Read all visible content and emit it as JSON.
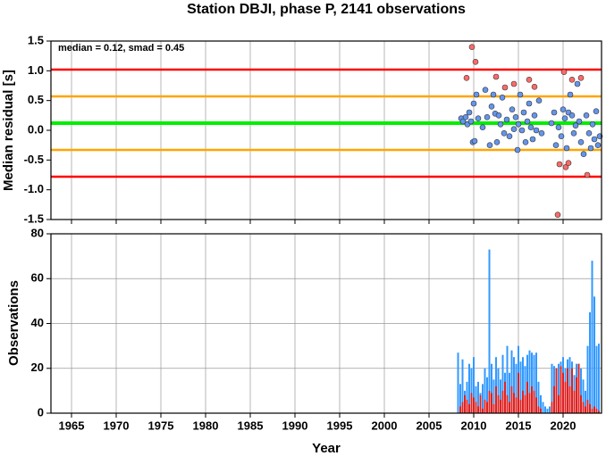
{
  "chart_data": [
    {
      "type": "scatter",
      "title": "Station DBJI, phase P, 2141 observations",
      "ylabel": "Median residual [s]",
      "annotation": "median = 0.12, smad = 0.45",
      "xlim": [
        1962.7,
        2024.3
      ],
      "xticks": [
        1965,
        1970,
        1975,
        1980,
        1985,
        1990,
        1995,
        2000,
        2005,
        2010,
        2015,
        2020
      ],
      "ylim": [
        -1.5,
        1.5
      ],
      "yticks": [
        -1.5,
        {
          "value": -1,
          "label": "-1.0"
        },
        -0.5,
        {
          "value": 0,
          "label": "0.0"
        },
        0.5,
        {
          "value": 1,
          "label": "1.0"
        },
        1.5
      ],
      "grid": true,
      "hlines": [
        {
          "value": 1.02,
          "color": "#ff0000"
        },
        {
          "value": 0.57,
          "color": "#ffa500"
        },
        {
          "value": 0.12,
          "color": "#00ee00"
        },
        {
          "value": -0.33,
          "color": "#ffa500"
        },
        {
          "value": -0.78,
          "color": "#ff0000"
        }
      ],
      "series": [
        {
          "color": "#6495ed",
          "x": [
            2008.6,
            2008.8,
            2009.1,
            2009.3,
            2009.5,
            2009.7,
            2009.9,
            2010.0,
            2010.1,
            2010.3,
            2010.5,
            2011.0,
            2011.3,
            2011.5,
            2011.8,
            2012.0,
            2012.2,
            2012.4,
            2012.6,
            2012.8,
            2013.0,
            2013.2,
            2013.4,
            2013.7,
            2014.0,
            2014.3,
            2014.5,
            2014.7,
            2014.9,
            2015.0,
            2015.2,
            2015.4,
            2015.6,
            2015.8,
            2016.0,
            2016.2,
            2016.4,
            2016.6,
            2016.8,
            2017.0,
            2017.3,
            2017.6,
            2018.7,
            2019.0,
            2019.2,
            2019.5,
            2019.8,
            2020.0,
            2020.2,
            2020.4,
            2020.6,
            2020.8,
            2021.0,
            2021.2,
            2021.4,
            2021.6,
            2021.8,
            2022.0,
            2022.3,
            2022.6,
            2022.9,
            2023.1,
            2023.3,
            2023.5,
            2023.7,
            2023.9,
            2024.1
          ],
          "values": [
            0.2,
            0.15,
            0.22,
            0.1,
            0.3,
            0.15,
            -0.2,
            0.45,
            -0.18,
            0.6,
            0.2,
            0.05,
            0.68,
            0.22,
            -0.25,
            0.4,
            0.6,
            0.28,
            -0.2,
            0.25,
            0.1,
            0.55,
            -0.05,
            0.18,
            -0.1,
            0.35,
            0.02,
            0.22,
            -0.33,
            0.1,
            0.6,
            0,
            0.3,
            -0.2,
            0.15,
            0.45,
            0.05,
            -0.15,
            0.25,
            0,
            0.5,
            -0.05,
            0.12,
            0.3,
            -0.25,
            0.05,
            -0.1,
            0.35,
            0.2,
            -0.3,
            0.3,
            0.6,
            0.25,
            -0.05,
            0.08,
            0.78,
            0.15,
            -0.2,
            -0.4,
            0.25,
            -0.05,
            -0.3,
            0.1,
            -0.15,
            0.32,
            -0.25,
            -0.1
          ]
        },
        {
          "color": "#ff6a6a",
          "x": [
            2009.2,
            2009.8,
            2010.2,
            2012.5,
            2013.5,
            2014.5,
            2016.2,
            2016.8,
            2019.4,
            2019.6,
            2020.1,
            2020.3,
            2020.6,
            2021.0,
            2022.0,
            2022.7
          ],
          "values": [
            0.88,
            1.4,
            1.15,
            0.9,
            0.72,
            0.78,
            0.85,
            0.73,
            -1.42,
            -0.57,
            0.98,
            -0.62,
            -0.55,
            0.85,
            0.88,
            -0.75
          ]
        }
      ]
    },
    {
      "type": "bar",
      "ylabel": "Observations",
      "xlabel": "Year",
      "xlim": [
        1962.7,
        2024.3
      ],
      "xticks": [
        1965,
        1970,
        1975,
        1980,
        1985,
        1990,
        1995,
        2000,
        2005,
        2010,
        2015,
        2020
      ],
      "ylim": [
        0,
        80
      ],
      "yticks": [
        0,
        20,
        40,
        60,
        80
      ],
      "grid": true,
      "x": [
        2008.25,
        2008.5,
        2008.75,
        2009,
        2009.25,
        2009.5,
        2009.75,
        2010,
        2010.25,
        2010.5,
        2010.75,
        2011,
        2011.25,
        2011.5,
        2011.75,
        2012,
        2012.25,
        2012.5,
        2012.75,
        2013,
        2013.25,
        2013.5,
        2013.75,
        2014,
        2014.25,
        2014.5,
        2014.75,
        2015,
        2015.25,
        2015.5,
        2015.75,
        2016,
        2016.25,
        2016.5,
        2016.75,
        2017,
        2017.25,
        2017.5,
        2017.75,
        2018,
        2018.25,
        2018.5,
        2018.75,
        2019,
        2019.25,
        2019.5,
        2019.75,
        2020,
        2020.25,
        2020.5,
        2020.75,
        2021,
        2021.25,
        2021.5,
        2021.75,
        2022,
        2022.25,
        2022.5,
        2022.75,
        2023,
        2023.25,
        2023.5,
        2023.75,
        2024
      ],
      "series": [
        {
          "color": "#3399ff",
          "values": [
            27,
            13,
            24,
            10,
            14,
            22,
            20,
            25,
            12,
            14,
            9,
            13,
            20,
            16,
            73,
            22,
            15,
            25,
            20,
            15,
            26,
            18,
            30,
            18,
            28,
            25,
            22,
            30,
            23,
            25,
            21,
            26,
            28,
            27,
            26,
            27,
            14,
            8,
            5,
            3,
            2,
            3,
            22,
            21,
            20,
            22,
            23,
            25,
            20,
            24,
            25,
            23,
            17,
            22,
            22,
            20,
            15,
            10,
            30,
            45,
            68,
            52,
            30,
            31
          ]
        },
        {
          "color": "#dd2222",
          "values": [
            0,
            3,
            5,
            8,
            6,
            4,
            9,
            7,
            5,
            3,
            8,
            2,
            6,
            5,
            10,
            9,
            4,
            12,
            8,
            6,
            10,
            14,
            8,
            5,
            12,
            9,
            7,
            18,
            6,
            10,
            8,
            14,
            9,
            12,
            10,
            7,
            3,
            2,
            0,
            0,
            0,
            0,
            5,
            12,
            20,
            8,
            21,
            18,
            14,
            20,
            12,
            20,
            10,
            16,
            22,
            8,
            5,
            3,
            6,
            4,
            2,
            3,
            2,
            1
          ]
        }
      ]
    }
  ]
}
